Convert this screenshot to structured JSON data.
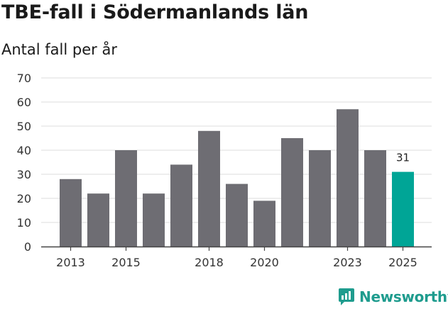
{
  "title": "TBE-fall i Södermanlands län",
  "subtitle": "Antal fall per år",
  "brand": {
    "name": "Newsworthy"
  },
  "colors": {
    "bar": "#6e6d73",
    "highlight": "#00a596",
    "grid": "#dddddd",
    "brand": "#1f9c8e"
  },
  "chart_data": {
    "type": "bar",
    "title": "TBE-fall i Södermanlands län",
    "ylabel": "Antal fall per år",
    "xlabel": "",
    "categories": [
      "2013",
      "2014",
      "2015",
      "2016",
      "2017",
      "2018",
      "2019",
      "2020",
      "2021",
      "2022",
      "2023",
      "2024",
      "2025"
    ],
    "values": [
      28,
      22,
      40,
      22,
      34,
      48,
      26,
      19,
      45,
      40,
      57,
      40,
      31
    ],
    "highlight_index": 12,
    "data_labels": [
      {
        "index": 12,
        "text": "31"
      }
    ],
    "x_tick_labels": [
      {
        "index": 0,
        "text": "2013"
      },
      {
        "index": 2,
        "text": "2015"
      },
      {
        "index": 5,
        "text": "2018"
      },
      {
        "index": 7,
        "text": "2020"
      },
      {
        "index": 10,
        "text": "2023"
      },
      {
        "index": 12,
        "text": "2025"
      }
    ],
    "y_ticks": [
      0,
      10,
      20,
      30,
      40,
      50,
      60,
      70
    ],
    "ylim": [
      0,
      70
    ],
    "grid": true
  }
}
